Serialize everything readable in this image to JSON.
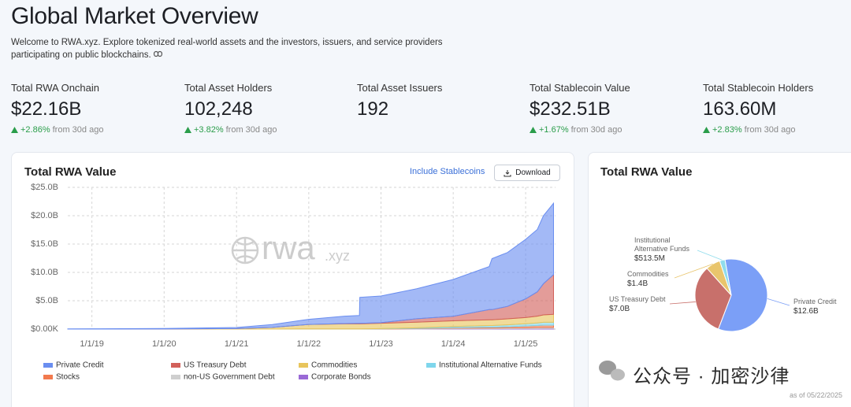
{
  "header": {
    "title": "Global Market Overview",
    "description": "Welcome to RWA.xyz. Explore tokenized real-world assets and the investors, issuers, and service providers participating on public blockchains."
  },
  "stats": [
    {
      "label": "Total RWA Onchain",
      "value": "$22.16B",
      "change": "+2.86%",
      "period": "from 30d ago"
    },
    {
      "label": "Total Asset Holders",
      "value": "102,248",
      "change": "+3.82%",
      "period": "from 30d ago"
    },
    {
      "label": "Total Asset Issuers",
      "value": "192"
    },
    {
      "label": "Total Stablecoin Value",
      "value": "$232.51B",
      "change": "+1.67%",
      "period": "from 30d ago"
    },
    {
      "label": "Total Stablecoin Holders",
      "value": "163.60M",
      "change": "+2.83%",
      "period": "from 30d ago"
    }
  ],
  "chart_data": [
    {
      "type": "area",
      "title": "Total RWA Value",
      "controls": {
        "toggle": "Include Stablecoins",
        "button": "Download"
      },
      "watermark": {
        "name": "rwa",
        "suffix": ".xyz"
      },
      "stacked": true,
      "grid": true,
      "x": [
        "9/1/18",
        "1/1/19",
        "1/1/20",
        "1/1/21",
        "7/1/21",
        "1/1/22",
        "7/1/22",
        "9/14/22",
        "9/16/22",
        "1/1/23",
        "7/1/23",
        "1/1/24",
        "7/1/24",
        "7/15/24",
        "10/1/24",
        "1/1/25",
        "3/1/25",
        "4/1/25",
        "5/22/25"
      ],
      "xlim": [
        "9/1/18",
        "6/1/25"
      ],
      "xticks": [
        "1/1/19",
        "1/1/20",
        "1/1/21",
        "1/1/22",
        "1/1/23",
        "1/1/24",
        "1/1/25"
      ],
      "ylim": [
        0,
        25
      ],
      "yticks": [
        {
          "value": 0,
          "label": "$0.00K"
        },
        {
          "value": 5,
          "label": "$5.0B"
        },
        {
          "value": 10,
          "label": "$10.0B"
        },
        {
          "value": 15,
          "label": "$15.0B"
        },
        {
          "value": 20,
          "label": "$20.0B"
        },
        {
          "value": 25,
          "label": "$25.0B"
        }
      ],
      "series": [
        {
          "name": "Private Credit",
          "color": "#6a8ef0",
          "values": [
            0.03,
            0.05,
            0.08,
            0.2,
            0.5,
            0.9,
            1.3,
            1.4,
            4.6,
            4.7,
            5.3,
            6.5,
            7.6,
            9.0,
            9.5,
            10.5,
            11.0,
            12.0,
            12.6
          ]
        },
        {
          "name": "US Treasury Debt",
          "color": "#d2605a",
          "values": [
            0,
            0,
            0,
            0,
            0,
            0,
            0.05,
            0.08,
            0.08,
            0.1,
            0.6,
            0.8,
            1.8,
            1.8,
            2.2,
            3.3,
            4.3,
            5.5,
            7.0
          ]
        },
        {
          "name": "Commodities",
          "color": "#e8c55c",
          "values": [
            0,
            0,
            0.02,
            0.08,
            0.3,
            0.8,
            0.9,
            0.9,
            0.9,
            0.95,
            1.0,
            1.0,
            1.0,
            1.0,
            1.05,
            1.1,
            1.2,
            1.3,
            1.4
          ]
        },
        {
          "name": "Institutional Alternative Funds",
          "color": "#7fd6ec",
          "values": [
            0,
            0,
            0,
            0,
            0,
            0,
            0,
            0,
            0,
            0.05,
            0.1,
            0.2,
            0.3,
            0.3,
            0.35,
            0.4,
            0.45,
            0.5,
            0.5
          ]
        },
        {
          "name": "Stocks",
          "color": "#f27a4e",
          "values": [
            0,
            0,
            0,
            0,
            0,
            0.02,
            0.02,
            0.02,
            0.02,
            0.03,
            0.05,
            0.1,
            0.15,
            0.15,
            0.2,
            0.3,
            0.35,
            0.4,
            0.4
          ]
        },
        {
          "name": "non-US Government Debt",
          "color": "#cfcfcf",
          "values": [
            0,
            0,
            0,
            0,
            0,
            0,
            0,
            0,
            0,
            0,
            0.05,
            0.1,
            0.12,
            0.12,
            0.13,
            0.15,
            0.18,
            0.2,
            0.2
          ]
        },
        {
          "name": "Corporate Bonds",
          "color": "#9a6ad6",
          "values": [
            0,
            0,
            0,
            0,
            0,
            0,
            0,
            0,
            0,
            0,
            0.02,
            0.05,
            0.06,
            0.06,
            0.07,
            0.08,
            0.09,
            0.1,
            0.1
          ]
        }
      ]
    },
    {
      "type": "pie",
      "title": "Total RWA Value",
      "categories": [
        "Private Credit",
        "US Treasury Debt",
        "Commodities",
        "Institutional Alternative Funds"
      ],
      "values": [
        12.6,
        7.0,
        1.4,
        0.5135
      ],
      "value_labels": [
        "$12.6B",
        "$7.0B",
        "$1.4B",
        "$513.5M"
      ],
      "colors": [
        "#7b9ff7",
        "#c8706b",
        "#e9c56c",
        "#8fdcec"
      ],
      "footnote": "as of 05/22/2025"
    }
  ],
  "overlay": {
    "text": "公众号 · 加密沙律"
  }
}
